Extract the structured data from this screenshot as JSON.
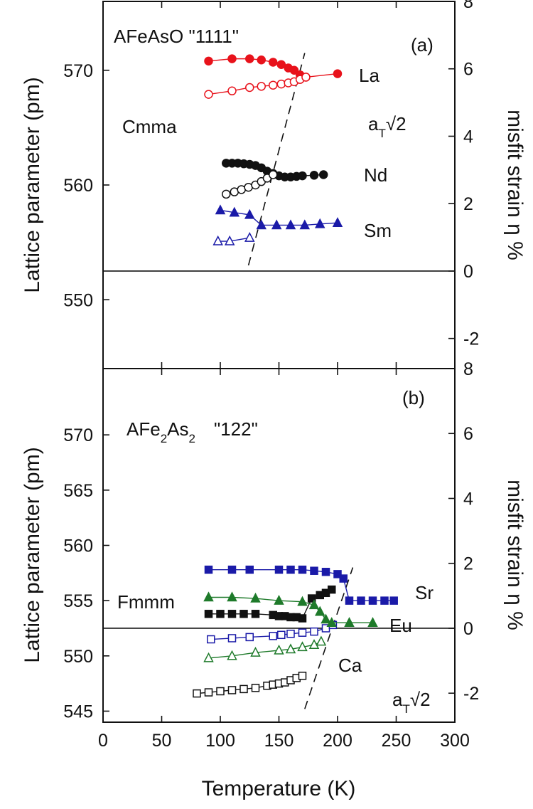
{
  "chart_data": [
    {
      "type": "scatter",
      "panel": "(a)",
      "title_parts": {
        "main": "AFeAsO \"1111\""
      },
      "phase_label": "Cmma",
      "atsqrt2_label": {
        "a": "a",
        "sub": "T",
        "rest": "√2"
      },
      "ylabel": "Lattice parameter (pm)",
      "y2label": "misfit strain η %",
      "xlim": [
        0,
        300
      ],
      "ylim": [
        544,
        576
      ],
      "y2lim": [
        -3,
        8
      ],
      "yticks": [
        550,
        560,
        570
      ],
      "y2ticks": [
        -2,
        0,
        2,
        4,
        6,
        8
      ],
      "strain_zero_lattice": 552.5,
      "series": [
        {
          "name": "La",
          "color": "#e8121b",
          "marker": "circle",
          "filled": true,
          "x": [
            90,
            110,
            125,
            135,
            145,
            152,
            158,
            163,
            168,
            173,
            200
          ],
          "y": [
            570.8,
            571.0,
            571.0,
            570.9,
            570.7,
            570.5,
            570.2,
            570.0,
            569.6,
            569.4,
            569.7
          ]
        },
        {
          "name": "",
          "color": "#e8121b",
          "marker": "circle",
          "filled": false,
          "x": [
            90,
            110,
            125,
            135,
            145,
            152,
            158,
            163,
            168,
            173
          ],
          "y": [
            567.9,
            568.2,
            568.5,
            568.6,
            568.7,
            568.8,
            568.9,
            569.0,
            569.2,
            569.4
          ]
        },
        {
          "name": "Nd",
          "color": "#111111",
          "marker": "circle",
          "filled": true,
          "x": [
            105,
            110,
            115,
            120,
            125,
            130,
            135,
            140,
            145,
            150,
            155,
            160,
            165,
            170,
            180,
            188
          ],
          "y": [
            561.9,
            561.9,
            561.9,
            561.85,
            561.8,
            561.7,
            561.5,
            561.2,
            561.0,
            560.8,
            560.7,
            560.7,
            560.75,
            560.8,
            560.85,
            560.9
          ]
        },
        {
          "name": "",
          "color": "#111111",
          "marker": "circle",
          "filled": false,
          "x": [
            105,
            112,
            118,
            124,
            130,
            135,
            140,
            145
          ],
          "y": [
            559.2,
            559.4,
            559.6,
            559.8,
            560.0,
            560.3,
            560.6,
            560.9
          ]
        },
        {
          "name": "Sm",
          "color": "#1a1aa8",
          "marker": "triangle",
          "filled": true,
          "x": [
            100,
            112,
            125,
            135,
            148,
            160,
            172,
            185,
            200
          ],
          "y": [
            557.8,
            557.6,
            557.4,
            556.5,
            556.5,
            556.5,
            556.5,
            556.6,
            556.7
          ]
        },
        {
          "name": "",
          "color": "#1a1aa8",
          "marker": "triangle",
          "filled": false,
          "x": [
            98,
            108,
            125
          ],
          "y": [
            555.1,
            555.1,
            555.4
          ]
        }
      ],
      "point_labels": [
        "La",
        "Nd",
        "Sm"
      ],
      "transition_line": {
        "x1": 124,
        "y1": 553.0,
        "x2": 172,
        "y2": 571.5
      }
    },
    {
      "type": "scatter",
      "panel": "(b)",
      "title_parts": {
        "a": "AFe",
        "s1": "2",
        "b": "As",
        "s2": "2",
        "c": "\"122\""
      },
      "phase_label": "Fmmm",
      "atsqrt2_label": {
        "a": "a",
        "sub": "T",
        "rest": "√2"
      },
      "ylabel": "Lattice parameter (pm)",
      "y2label": "misfit strain η %",
      "xlabel": "Temperature (K)",
      "xlim": [
        0,
        300
      ],
      "xticks": [
        0,
        50,
        100,
        150,
        200,
        250,
        300
      ],
      "ylim": [
        544,
        576
      ],
      "yticks": [
        545,
        550,
        555,
        560,
        565,
        570
      ],
      "y2lim": [
        -3,
        8
      ],
      "y2ticks": [
        -2,
        0,
        2,
        4,
        6,
        8
      ],
      "strain_zero_lattice": 552.5,
      "series": [
        {
          "name": "Sr",
          "color": "#1a1aa8",
          "marker": "square",
          "filled": true,
          "x": [
            90,
            110,
            125,
            150,
            160,
            170,
            180,
            190,
            200,
            205,
            210,
            220,
            230,
            240,
            248
          ],
          "y": [
            557.8,
            557.8,
            557.8,
            557.8,
            557.8,
            557.8,
            557.7,
            557.6,
            557.4,
            557.0,
            555.0,
            555.0,
            555.0,
            555.0,
            555.0
          ]
        },
        {
          "name": "",
          "color": "#1a1aa8",
          "marker": "square",
          "filled": false,
          "x": [
            92,
            110,
            125,
            145,
            152,
            160,
            170,
            180,
            190,
            196
          ],
          "y": [
            551.5,
            551.6,
            551.7,
            551.8,
            551.9,
            552.0,
            552.1,
            552.2,
            552.5,
            552.8
          ]
        },
        {
          "name": "",
          "color": "#111111",
          "marker": "square",
          "filled": true,
          "x": [
            90,
            100,
            110,
            120,
            130,
            145,
            150,
            155,
            160,
            165,
            170,
            178,
            185,
            190,
            195
          ],
          "y": [
            553.8,
            553.8,
            553.8,
            553.8,
            553.8,
            553.7,
            553.6,
            553.6,
            553.5,
            553.5,
            553.4,
            555.2,
            555.5,
            555.7,
            556.0
          ]
        },
        {
          "name": "",
          "color": "#111111",
          "marker": "square",
          "filled": false,
          "x": [
            80,
            90,
            100,
            110,
            120,
            130,
            140,
            145,
            150,
            155,
            160,
            165,
            170
          ],
          "y": [
            546.6,
            546.7,
            546.8,
            546.9,
            547.0,
            547.1,
            547.3,
            547.4,
            547.5,
            547.6,
            547.8,
            548.0,
            548.2
          ]
        },
        {
          "name": "Eu",
          "color": "#1e7a2a",
          "marker": "triangle",
          "filled": true,
          "x": [
            90,
            110,
            130,
            150,
            170,
            180,
            185,
            190,
            195,
            210,
            230
          ],
          "y": [
            555.3,
            555.3,
            555.2,
            555.0,
            554.9,
            554.6,
            554.0,
            553.3,
            553.0,
            553.0,
            553.0
          ]
        },
        {
          "name": "",
          "color": "#1e7a2a",
          "marker": "triangle",
          "filled": false,
          "x": [
            90,
            110,
            130,
            150,
            160,
            170,
            180,
            186
          ],
          "y": [
            549.8,
            550.0,
            550.3,
            550.5,
            550.6,
            550.8,
            551.0,
            551.3
          ]
        }
      ],
      "point_labels": [
        "Sr",
        "Eu",
        "Ca"
      ],
      "transition_line": {
        "x1": 172,
        "y1": 545.2,
        "x2": 213,
        "y2": 558.0
      }
    }
  ],
  "colors": {
    "la": "#e8121b",
    "black": "#111111",
    "blue": "#1a1aa8",
    "green": "#1e7a2a"
  }
}
